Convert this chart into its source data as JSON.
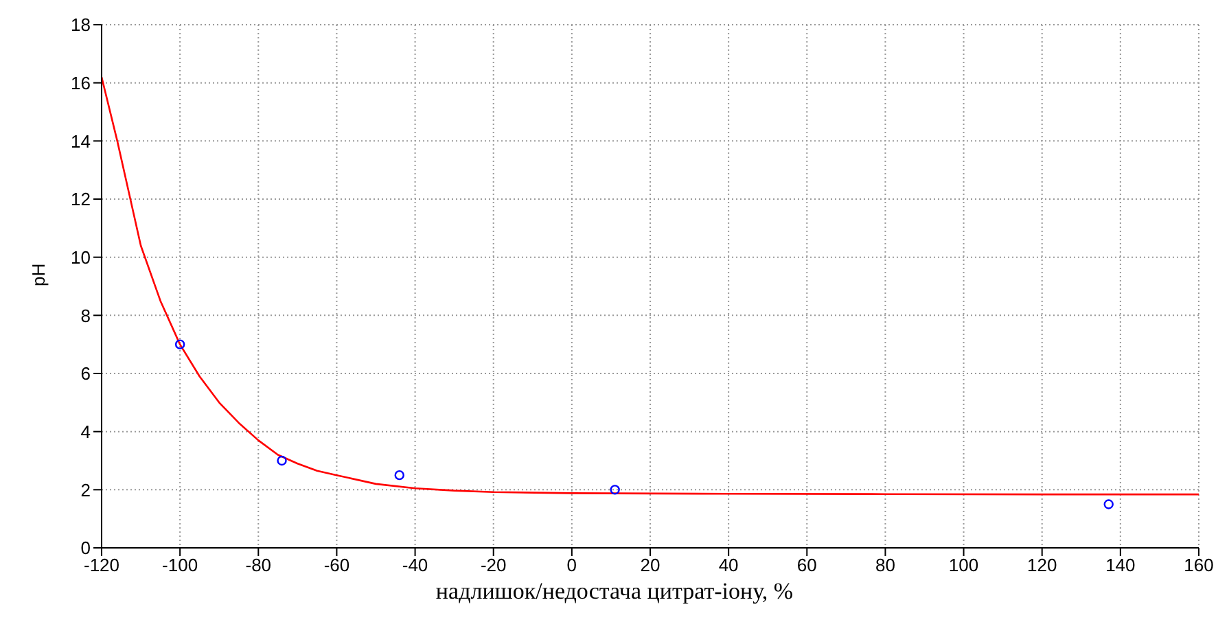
{
  "chart_data": {
    "type": "line",
    "xlabel": "надлишок/недостача цитрат-іону, %",
    "ylabel": "pH",
    "xlim": [
      -120,
      160
    ],
    "ylim": [
      0,
      18
    ],
    "xticks": [
      -120,
      -100,
      -80,
      -60,
      -40,
      -20,
      0,
      20,
      40,
      60,
      80,
      100,
      120,
      140,
      160
    ],
    "yticks": [
      0,
      2,
      4,
      6,
      8,
      10,
      12,
      14,
      16,
      18
    ],
    "grid": true,
    "series": [
      {
        "color": "#ff0000",
        "line_style": "solid",
        "marker": "none",
        "x": [
          -120,
          -116,
          -113,
          -110,
          -105,
          -100,
          -95,
          -90,
          -85,
          -80,
          -75,
          -70,
          -65,
          -60,
          -50,
          -40,
          -30,
          -20,
          0,
          40,
          80,
          120,
          160
        ],
        "values": [
          16.2,
          14,
          12.2,
          10.4,
          8.5,
          7.0,
          5.9,
          5.0,
          4.3,
          3.7,
          3.2,
          2.9,
          2.65,
          2.5,
          2.2,
          2.05,
          1.97,
          1.92,
          1.88,
          1.86,
          1.85,
          1.84,
          1.84
        ]
      },
      {
        "type": "scatter",
        "color": "#0000ff",
        "marker": "circle",
        "x": [
          -100,
          -74,
          -44,
          11,
          137
        ],
        "values": [
          7,
          3,
          2.5,
          2,
          1.5
        ]
      }
    ]
  }
}
